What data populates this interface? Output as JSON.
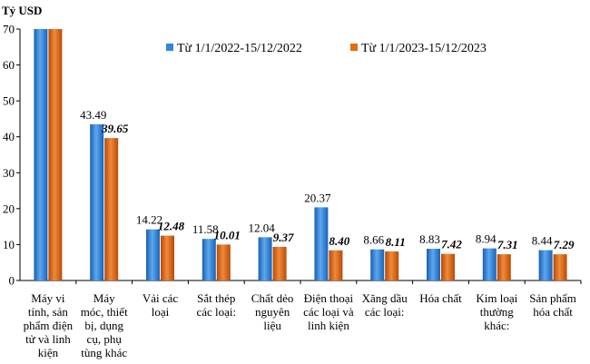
{
  "chart_data": {
    "type": "bar",
    "ylabel": "Tỷ USD",
    "ylim": [
      0,
      70
    ],
    "yticks": [
      0,
      10,
      20,
      30,
      40,
      50,
      60,
      70
    ],
    "legend_position": "top-right",
    "categories": [
      [
        "Máy vi",
        "tính, sản",
        "phẩm điện",
        "tử và linh",
        "kiện"
      ],
      [
        "Máy",
        "móc, thiết",
        "bị, dụng",
        "cụ, phụ",
        "tùng khác"
      ],
      [
        "Vải các",
        "loại"
      ],
      [
        "Sắt thép",
        "các loại:"
      ],
      [
        "Chất dẻo",
        "nguyên",
        "liệu"
      ],
      [
        "Điện thoại",
        "các loại và",
        "linh kiện"
      ],
      [
        "Xăng dầu",
        "các loại:"
      ],
      [
        "Hóa chất"
      ],
      [
        "Kim loại",
        "thường",
        "khác:"
      ],
      [
        "Sản phẩm",
        "hóa chất"
      ]
    ],
    "series": [
      {
        "name": "Từ 1/1/2022-15/12/2022",
        "color": "#2E86DE",
        "values": [
          70,
          43.49,
          14.22,
          11.58,
          12.04,
          20.37,
          8.66,
          8.83,
          8.94,
          8.44
        ],
        "labels": [
          "",
          "43.49",
          "14.22",
          "11.58",
          "12.04",
          "20.37",
          "8.66",
          "8.83",
          "8.94",
          "8.44"
        ]
      },
      {
        "name": "Từ 1/1/2023-15/12/2023",
        "color": "#E46C0A",
        "values": [
          70,
          39.65,
          12.48,
          10.01,
          9.37,
          8.4,
          8.11,
          7.42,
          7.31,
          7.29
        ],
        "labels": [
          "",
          "39.65",
          "12.48",
          "10.01",
          "9.37",
          "8.40",
          "8.11",
          "7.42",
          "7.31",
          "7.29"
        ]
      }
    ]
  }
}
